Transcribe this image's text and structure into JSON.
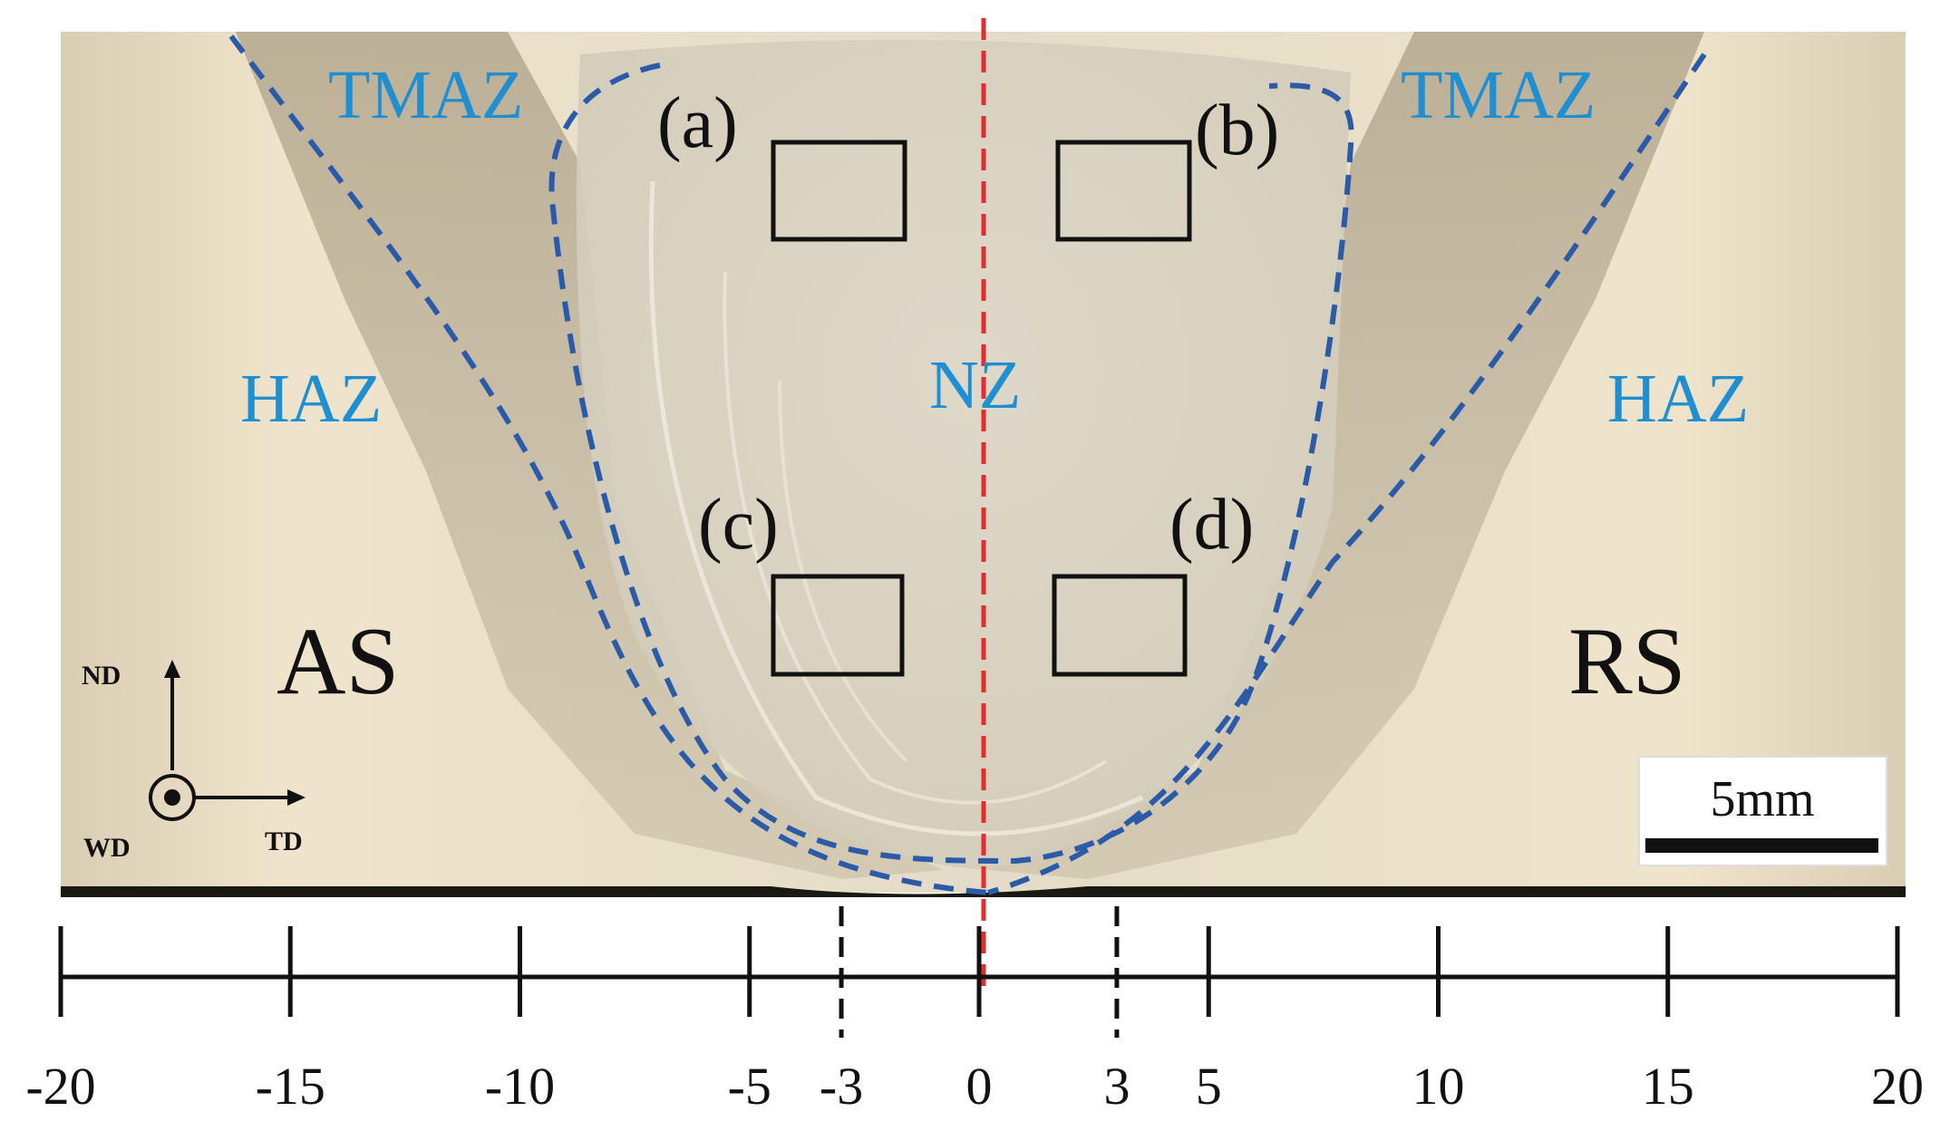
{
  "zones": {
    "tmaz_left": "TMAZ",
    "tmaz_right": "TMAZ",
    "haz_left": "HAZ",
    "haz_right": "HAZ",
    "nz": "NZ"
  },
  "sides": {
    "advancing": "AS",
    "retreating": "RS"
  },
  "regions": [
    "(a)",
    "(b)",
    "(c)",
    "(d)"
  ],
  "axes_indicator": {
    "nd": "ND",
    "td": "TD",
    "wd": "WD"
  },
  "scale_bar": {
    "label": "5mm"
  },
  "ruler": {
    "ticks": [
      -20,
      -15,
      -10,
      -5,
      0,
      5,
      10,
      15,
      20
    ],
    "labels": [
      "-20",
      "-15",
      "-10",
      "-5",
      "-3",
      "0",
      "3",
      "5",
      "10",
      "15",
      "20"
    ],
    "boundaries": [
      -3,
      3
    ]
  },
  "colors": {
    "zone_label": "#1f8fd1",
    "boundary_line": "#2a5aa8",
    "center_line": "#e52b2b",
    "ink": "#111111"
  }
}
